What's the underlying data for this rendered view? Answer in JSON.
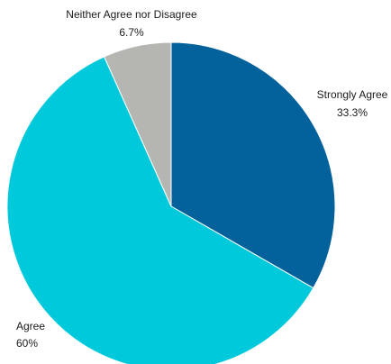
{
  "chart_data": {
    "type": "pie",
    "title": "",
    "start_angle_deg": 0,
    "direction": "clockwise",
    "slices": [
      {
        "label": "Strongly Agree",
        "value": 33.3,
        "value_label": "33.3%",
        "color": "#03619B"
      },
      {
        "label": "Agree",
        "value": 60,
        "value_label": "60%",
        "color": "#00C9DC"
      },
      {
        "label": "Neither Agree nor Disagree",
        "value": 6.7,
        "value_label": "6.7%",
        "color": "#B5B5B2"
      }
    ]
  }
}
